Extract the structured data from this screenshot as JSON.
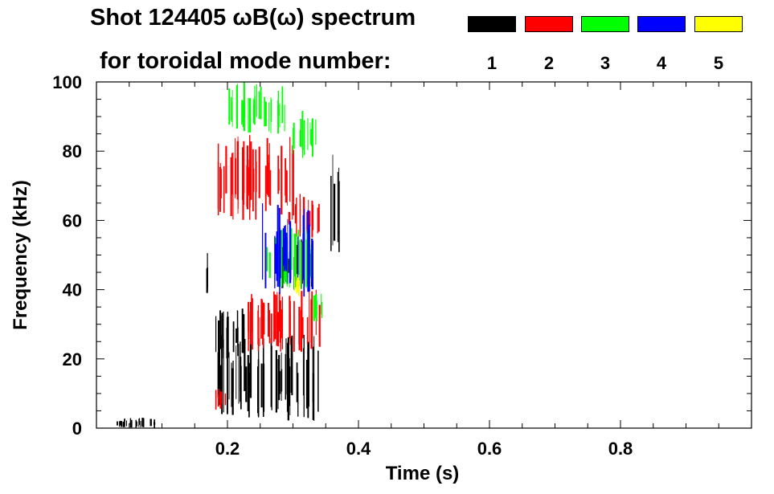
{
  "header": {
    "title_line1": "Shot 124405 ωB(ω) spectrum",
    "title_line2": "for toroidal mode number:"
  },
  "legend": [
    {
      "label": "1",
      "color": "#000000"
    },
    {
      "label": "2",
      "color": "#ff0000"
    },
    {
      "label": "3",
      "color": "#00ff00"
    },
    {
      "label": "4",
      "color": "#0000ff"
    },
    {
      "label": "5",
      "color": "#ffff00"
    }
  ],
  "chart_data": {
    "type": "heatmap",
    "title": "Shot 124405 ωB(ω) spectrum",
    "xlabel": "Time (s)",
    "ylabel": "Frequency (kHz)",
    "xlim": [
      0.0,
      1.0
    ],
    "ylim": [
      0,
      100
    ],
    "x_ticks": [
      0.2,
      0.4,
      0.6,
      0.8
    ],
    "x_tick_labels": [
      "0.2",
      "0.4",
      "0.6",
      "0.8"
    ],
    "y_ticks": [
      0,
      20,
      40,
      60,
      80,
      100
    ],
    "y_tick_labels": [
      "0",
      "20",
      "40",
      "60",
      "80",
      "100"
    ],
    "series": [
      {
        "name": "n=1",
        "color": "#000000",
        "regions": [
          {
            "t0": 0.18,
            "t1": 0.34,
            "f0": 2,
            "f1": 27
          },
          {
            "t0": 0.18,
            "t1": 0.225,
            "f0": 20,
            "f1": 35
          },
          {
            "t0": 0.166,
            "t1": 0.17,
            "f0": 35,
            "f1": 55
          },
          {
            "t0": 0.355,
            "t1": 0.37,
            "f0": 50,
            "f1": 80
          },
          {
            "t0": 0.28,
            "t1": 0.33,
            "f0": 40,
            "f1": 55
          },
          {
            "t0": 0.03,
            "t1": 0.09,
            "f0": 0,
            "f1": 3
          }
        ]
      },
      {
        "name": "n=2",
        "color": "#ff0000",
        "regions": [
          {
            "t0": 0.23,
            "t1": 0.34,
            "f0": 22,
            "f1": 40
          },
          {
            "t0": 0.185,
            "t1": 0.3,
            "f0": 60,
            "f1": 85
          },
          {
            "t0": 0.29,
            "t1": 0.34,
            "f0": 55,
            "f1": 68
          },
          {
            "t0": 0.18,
            "t1": 0.2,
            "f0": 5,
            "f1": 12
          }
        ]
      },
      {
        "name": "n=3",
        "color": "#00ff00",
        "regions": [
          {
            "t0": 0.2,
            "t1": 0.29,
            "f0": 85,
            "f1": 100
          },
          {
            "t0": 0.255,
            "t1": 0.33,
            "f0": 40,
            "f1": 58
          },
          {
            "t0": 0.29,
            "t1": 0.335,
            "f0": 78,
            "f1": 92
          },
          {
            "t0": 0.33,
            "t1": 0.345,
            "f0": 30,
            "f1": 40
          }
        ]
      },
      {
        "name": "n=4",
        "color": "#0000ff",
        "regions": [
          {
            "t0": 0.25,
            "t1": 0.33,
            "f0": 38,
            "f1": 65
          }
        ]
      },
      {
        "name": "n=5",
        "color": "#ffff00",
        "regions": [
          {
            "t0": 0.3,
            "t1": 0.31,
            "f0": 38,
            "f1": 45
          }
        ]
      }
    ]
  }
}
